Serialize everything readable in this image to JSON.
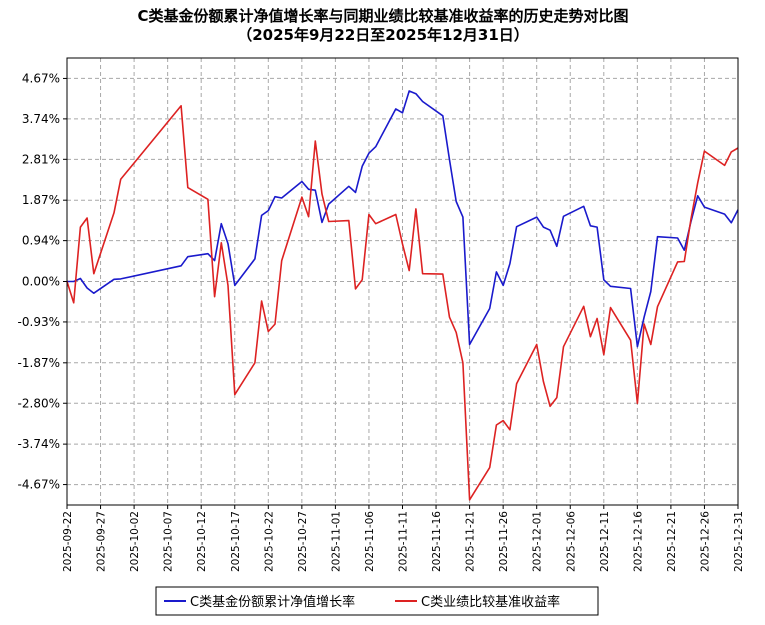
{
  "chart_data": {
    "type": "line",
    "title": "C类基金份额累计净值增长率与同期业绩比较基准收益率的历史走势对比图",
    "subtitle": "（2025年9月22日至2025年12月31日）",
    "xlabel": "",
    "ylabel": "",
    "x_start": "2025-09-22",
    "x_end": "2025-12-31",
    "x_ticks": [
      "2025-09-22",
      "2025-09-27",
      "2025-10-02",
      "2025-10-07",
      "2025-10-12",
      "2025-10-17",
      "2025-10-22",
      "2025-10-27",
      "2025-11-01",
      "2025-11-06",
      "2025-11-11",
      "2025-11-16",
      "2025-11-21",
      "2025-11-26",
      "2025-12-01",
      "2025-12-06",
      "2025-12-11",
      "2025-12-16",
      "2025-12-21",
      "2025-12-26",
      "2025-12-31"
    ],
    "y_ticks": [
      {
        "value": 4.67,
        "label": "4.67%"
      },
      {
        "value": 3.74,
        "label": "3.74%"
      },
      {
        "value": 2.81,
        "label": "2.81%"
      },
      {
        "value": 1.87,
        "label": "1.87%"
      },
      {
        "value": 0.94,
        "label": "0.94%"
      },
      {
        "value": 0.0,
        "label": "0.00%"
      },
      {
        "value": -0.93,
        "label": "-0.93%"
      },
      {
        "value": -1.87,
        "label": "-1.87%"
      },
      {
        "value": -2.8,
        "label": "-2.80%"
      },
      {
        "value": -3.74,
        "label": "-3.74%"
      },
      {
        "value": -4.67,
        "label": "-4.67%"
      }
    ],
    "ylim": [
      -5.14,
      5.14
    ],
    "grid": true,
    "legend_position": "bottom-center",
    "series": [
      {
        "name": "C类基金份额累计净值增长率",
        "color": "#1a1acc",
        "points": [
          [
            "2025-09-22",
            0.0
          ],
          [
            "2025-09-23",
            0.0
          ],
          [
            "2025-09-24",
            0.07
          ],
          [
            "2025-09-25",
            -0.15
          ],
          [
            "2025-09-26",
            -0.27
          ],
          [
            "2025-09-29",
            0.05
          ],
          [
            "2025-09-30",
            0.06
          ],
          [
            "2025-10-09",
            0.36
          ],
          [
            "2025-10-10",
            0.57
          ],
          [
            "2025-10-13",
            0.64
          ],
          [
            "2025-10-14",
            0.48
          ],
          [
            "2025-10-15",
            1.33
          ],
          [
            "2025-10-16",
            0.87
          ],
          [
            "2025-10-17",
            -0.09
          ],
          [
            "2025-10-20",
            0.52
          ],
          [
            "2025-10-21",
            1.52
          ],
          [
            "2025-10-22",
            1.63
          ],
          [
            "2025-10-23",
            1.95
          ],
          [
            "2025-10-24",
            1.92
          ],
          [
            "2025-10-27",
            2.3
          ],
          [
            "2025-10-28",
            2.12
          ],
          [
            "2025-10-29",
            2.1
          ],
          [
            "2025-10-30",
            1.36
          ],
          [
            "2025-10-31",
            1.78
          ],
          [
            "2025-11-03",
            2.19
          ],
          [
            "2025-11-04",
            2.05
          ],
          [
            "2025-11-05",
            2.65
          ],
          [
            "2025-11-06",
            2.95
          ],
          [
            "2025-11-07",
            3.1
          ],
          [
            "2025-11-10",
            3.97
          ],
          [
            "2025-11-11",
            3.88
          ],
          [
            "2025-11-12",
            4.38
          ],
          [
            "2025-11-13",
            4.32
          ],
          [
            "2025-11-14",
            4.14
          ],
          [
            "2025-11-17",
            3.81
          ],
          [
            "2025-11-18",
            2.8
          ],
          [
            "2025-11-19",
            1.84
          ],
          [
            "2025-11-20",
            1.48
          ],
          [
            "2025-11-21",
            -1.45
          ],
          [
            "2025-11-24",
            -0.62
          ],
          [
            "2025-11-25",
            0.22
          ],
          [
            "2025-11-26",
            -0.09
          ],
          [
            "2025-11-27",
            0.41
          ],
          [
            "2025-11-28",
            1.26
          ],
          [
            "2025-12-01",
            1.48
          ],
          [
            "2025-12-02",
            1.25
          ],
          [
            "2025-12-03",
            1.18
          ],
          [
            "2025-12-04",
            0.81
          ],
          [
            "2025-12-05",
            1.5
          ],
          [
            "2025-12-08",
            1.73
          ],
          [
            "2025-12-09",
            1.28
          ],
          [
            "2025-12-10",
            1.25
          ],
          [
            "2025-12-11",
            0.04
          ],
          [
            "2025-12-12",
            -0.11
          ],
          [
            "2025-12-15",
            -0.16
          ],
          [
            "2025-12-16",
            -1.5
          ],
          [
            "2025-12-17",
            -0.82
          ],
          [
            "2025-12-18",
            -0.23
          ],
          [
            "2025-12-19",
            1.03
          ],
          [
            "2025-12-22",
            1.0
          ],
          [
            "2025-12-23",
            0.72
          ],
          [
            "2025-12-24",
            1.38
          ],
          [
            "2025-12-25",
            1.97
          ],
          [
            "2025-12-26",
            1.71
          ],
          [
            "2025-12-29",
            1.55
          ],
          [
            "2025-12-30",
            1.35
          ],
          [
            "2025-12-31",
            1.65
          ]
        ]
      },
      {
        "name": "C类业绩比较基准收益率",
        "color": "#dd2222",
        "points": [
          [
            "2025-09-22",
            0.0
          ],
          [
            "2025-09-23",
            -0.49
          ],
          [
            "2025-09-24",
            1.25
          ],
          [
            "2025-09-25",
            1.46
          ],
          [
            "2025-09-26",
            0.18
          ],
          [
            "2025-09-29",
            1.58
          ],
          [
            "2025-09-30",
            2.35
          ],
          [
            "2025-10-09",
            4.04
          ],
          [
            "2025-10-10",
            2.16
          ],
          [
            "2025-10-13",
            1.89
          ],
          [
            "2025-10-14",
            -0.35
          ],
          [
            "2025-10-15",
            0.89
          ],
          [
            "2025-10-16",
            -0.09
          ],
          [
            "2025-10-17",
            -2.6
          ],
          [
            "2025-10-20",
            -1.87
          ],
          [
            "2025-10-21",
            -0.45
          ],
          [
            "2025-10-22",
            -1.15
          ],
          [
            "2025-10-23",
            -0.98
          ],
          [
            "2025-10-24",
            0.48
          ],
          [
            "2025-10-27",
            1.94
          ],
          [
            "2025-10-28",
            1.49
          ],
          [
            "2025-10-29",
            3.23
          ],
          [
            "2025-10-30",
            2.01
          ],
          [
            "2025-10-31",
            1.38
          ],
          [
            "2025-11-03",
            1.4
          ],
          [
            "2025-11-04",
            -0.17
          ],
          [
            "2025-11-05",
            0.04
          ],
          [
            "2025-11-06",
            1.54
          ],
          [
            "2025-11-07",
            1.33
          ],
          [
            "2025-11-10",
            1.54
          ],
          [
            "2025-11-11",
            0.86
          ],
          [
            "2025-11-12",
            0.25
          ],
          [
            "2025-11-13",
            1.67
          ],
          [
            "2025-11-14",
            0.18
          ],
          [
            "2025-11-17",
            0.17
          ],
          [
            "2025-11-18",
            -0.82
          ],
          [
            "2025-11-19",
            -1.17
          ],
          [
            "2025-11-20",
            -1.87
          ],
          [
            "2025-11-21",
            -5.02
          ],
          [
            "2025-11-24",
            -4.28
          ],
          [
            "2025-11-25",
            -3.3
          ],
          [
            "2025-11-26",
            -3.2
          ],
          [
            "2025-11-27",
            -3.41
          ],
          [
            "2025-11-28",
            -2.35
          ],
          [
            "2025-12-01",
            -1.45
          ],
          [
            "2025-12-02",
            -2.3
          ],
          [
            "2025-12-03",
            -2.87
          ],
          [
            "2025-12-04",
            -2.67
          ],
          [
            "2025-12-05",
            -1.5
          ],
          [
            "2025-12-08",
            -0.57
          ],
          [
            "2025-12-09",
            -1.27
          ],
          [
            "2025-12-10",
            -0.85
          ],
          [
            "2025-12-11",
            -1.68
          ],
          [
            "2025-12-12",
            -0.6
          ],
          [
            "2025-12-15",
            -1.35
          ],
          [
            "2025-12-16",
            -2.8
          ],
          [
            "2025-12-17",
            -0.98
          ],
          [
            "2025-12-18",
            -1.45
          ],
          [
            "2025-12-19",
            -0.58
          ],
          [
            "2025-12-22",
            0.45
          ],
          [
            "2025-12-23",
            0.46
          ],
          [
            "2025-12-24",
            1.44
          ],
          [
            "2025-12-25",
            2.27
          ],
          [
            "2025-12-26",
            3.0
          ],
          [
            "2025-12-29",
            2.67
          ],
          [
            "2025-12-30",
            2.98
          ],
          [
            "2025-12-31",
            3.07
          ]
        ]
      }
    ]
  }
}
